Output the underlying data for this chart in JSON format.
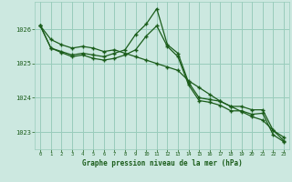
{
  "title": "Graphe pression niveau de la mer (hPa)",
  "background_color": "#cce8e0",
  "grid_color": "#99ccbb",
  "line_color": "#1a5c1a",
  "xlim": [
    -0.5,
    23.5
  ],
  "ylim": [
    1022.5,
    1026.8
  ],
  "xticks": [
    0,
    1,
    2,
    3,
    4,
    5,
    6,
    7,
    8,
    9,
    10,
    11,
    12,
    13,
    14,
    15,
    16,
    17,
    18,
    19,
    20,
    21,
    22,
    23
  ],
  "yticks": [
    1023,
    1024,
    1025,
    1026
  ],
  "series1_x": [
    0,
    1,
    2,
    3,
    4,
    5,
    6,
    7,
    8,
    9,
    10,
    11,
    12,
    13,
    14,
    15,
    16,
    17,
    18,
    19,
    20,
    21,
    22,
    23
  ],
  "series1_y": [
    1026.1,
    1025.45,
    1025.35,
    1025.25,
    1025.3,
    1025.25,
    1025.2,
    1025.3,
    1025.4,
    1025.85,
    1026.15,
    1026.6,
    1025.55,
    1025.3,
    1024.45,
    1024.0,
    1023.95,
    1023.9,
    1023.75,
    1023.75,
    1023.65,
    1023.65,
    1023.05,
    1022.85
  ],
  "series2_x": [
    0,
    1,
    2,
    3,
    4,
    5,
    6,
    7,
    8,
    9,
    10,
    11,
    12,
    13,
    14,
    15,
    16,
    17,
    18,
    19,
    20,
    21,
    22,
    23
  ],
  "series2_y": [
    1026.1,
    1025.45,
    1025.32,
    1025.2,
    1025.25,
    1025.15,
    1025.1,
    1025.15,
    1025.25,
    1025.4,
    1025.8,
    1026.1,
    1025.5,
    1025.2,
    1024.38,
    1023.92,
    1023.87,
    1023.78,
    1023.62,
    1023.62,
    1023.52,
    1023.55,
    1022.92,
    1022.72
  ],
  "series3_x": [
    0,
    1,
    2,
    3,
    4,
    5,
    6,
    7,
    8,
    9,
    10,
    11,
    12,
    13,
    14,
    15,
    16,
    17,
    18,
    19,
    20,
    21,
    22,
    23
  ],
  "series3_y": [
    1026.1,
    1025.7,
    1025.55,
    1025.45,
    1025.5,
    1025.45,
    1025.35,
    1025.4,
    1025.3,
    1025.2,
    1025.1,
    1025.0,
    1024.9,
    1024.8,
    1024.5,
    1024.3,
    1024.1,
    1023.9,
    1023.75,
    1023.6,
    1023.45,
    1023.35,
    1023.05,
    1022.75
  ]
}
